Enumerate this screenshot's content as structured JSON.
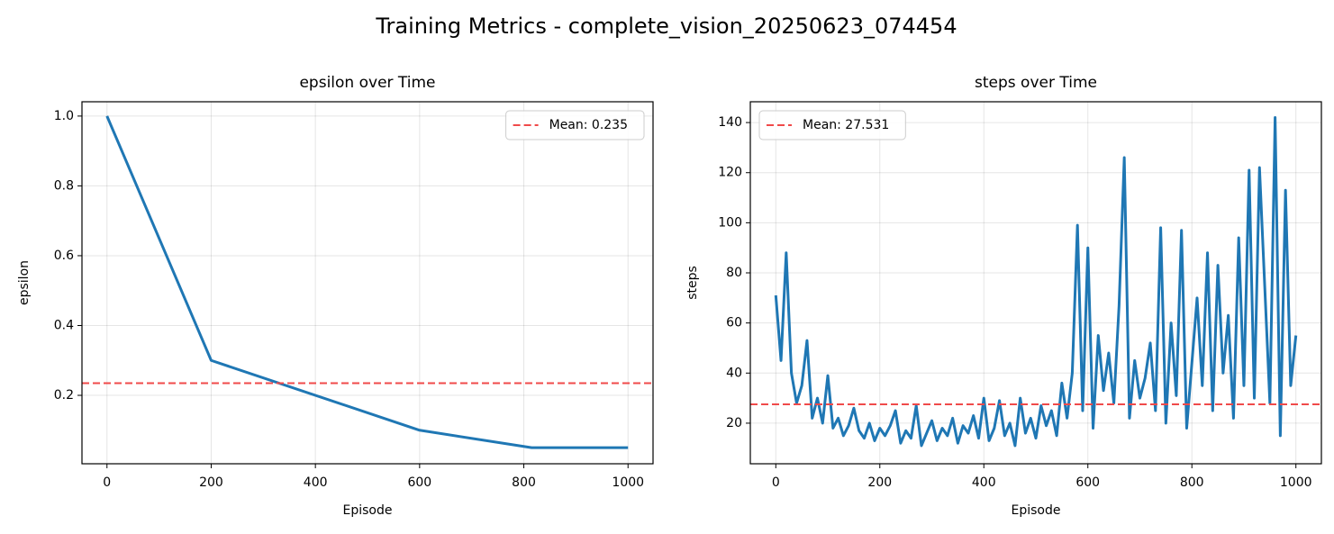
{
  "title": "Training Metrics - complete_vision_20250623_074454",
  "chart_data": [
    {
      "type": "line",
      "title": "epsilon over Time",
      "x_label": "Episode",
      "y_label": "epsilon",
      "x": [
        0,
        200,
        600,
        815,
        1000
      ],
      "values": [
        1.0,
        0.3,
        0.1,
        0.05,
        0.05
      ],
      "color": "#1f77b4",
      "hlines": [
        {
          "value": 0.235,
          "label": "Mean: 0.235",
          "color": "#f04a4a"
        }
      ],
      "xlim": [
        -48,
        1048
      ],
      "xticks": [
        0,
        200,
        400,
        600,
        800,
        1000
      ],
      "ylim": [
        0.004,
        1.041
      ],
      "yticks": [
        0.2,
        0.4,
        0.6,
        0.8,
        {
          "value": 1,
          "label": "1.0"
        }
      ],
      "grid": true,
      "legend": "upper right"
    },
    {
      "type": "line",
      "title": "steps over Time",
      "x_label": "Episode",
      "y_label": "steps",
      "x": [
        0,
        10,
        20,
        30,
        40,
        50,
        60,
        70,
        80,
        90,
        100,
        110,
        120,
        130,
        140,
        150,
        160,
        170,
        180,
        190,
        200,
        210,
        220,
        230,
        240,
        250,
        260,
        270,
        280,
        290,
        300,
        310,
        320,
        330,
        340,
        350,
        360,
        370,
        380,
        390,
        400,
        410,
        420,
        430,
        440,
        450,
        460,
        470,
        480,
        490,
        500,
        510,
        520,
        530,
        540,
        550,
        560,
        570,
        580,
        590,
        600,
        610,
        620,
        630,
        640,
        650,
        660,
        670,
        680,
        690,
        700,
        710,
        720,
        730,
        740,
        750,
        760,
        770,
        780,
        790,
        800,
        810,
        820,
        830,
        840,
        850,
        860,
        870,
        880,
        890,
        900,
        910,
        920,
        930,
        940,
        950,
        960,
        970,
        980,
        990,
        1000
      ],
      "values": [
        71,
        45,
        88,
        40,
        28,
        35,
        53,
        22,
        30,
        20,
        39,
        18,
        22,
        15,
        19,
        26,
        17,
        14,
        20,
        13,
        18,
        15,
        19,
        25,
        12,
        17,
        14,
        27,
        11,
        16,
        21,
        13,
        18,
        15,
        22,
        12,
        19,
        16,
        23,
        14,
        30,
        13,
        18,
        29,
        15,
        20,
        11,
        30,
        16,
        22,
        14,
        27,
        19,
        25,
        15,
        36,
        22,
        40,
        99,
        25,
        90,
        18,
        55,
        33,
        48,
        28,
        67,
        126,
        22,
        45,
        30,
        38,
        52,
        25,
        98,
        20,
        60,
        31,
        97,
        18,
        44,
        70,
        35,
        88,
        25,
        83,
        40,
        63,
        22,
        94,
        35,
        121,
        30,
        122,
        75,
        28,
        142,
        15,
        113,
        35,
        55
      ],
      "color": "#1f77b4",
      "hlines": [
        {
          "value": 27.531,
          "label": "Mean: 27.531",
          "color": "#f04a4a"
        }
      ],
      "xlim": [
        -49,
        1049
      ],
      "xticks": [
        0,
        200,
        400,
        600,
        800,
        1000
      ],
      "ylim": [
        3.8,
        148.3
      ],
      "yticks": [
        20,
        40,
        60,
        80,
        100,
        120,
        140
      ],
      "grid": true,
      "legend": "upper left"
    }
  ]
}
